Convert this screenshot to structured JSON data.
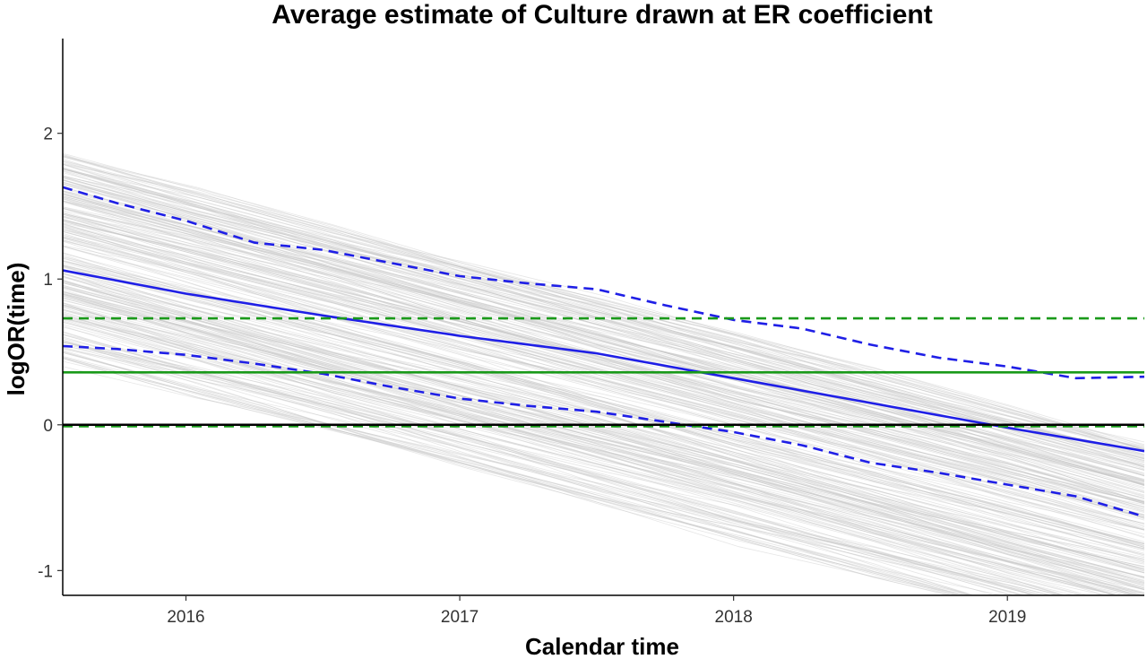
{
  "chart_data": {
    "type": "line",
    "title": "Average estimate of Culture drawn at ER coefficient",
    "xlabel": "Calendar time",
    "ylabel": "logOR(time)",
    "xlim": [
      2015.55,
      2019.5
    ],
    "ylim": [
      -1.17,
      2.65
    ],
    "x_ticks": [
      2016,
      2017,
      2018,
      2019
    ],
    "x_tick_labels": [
      "2016",
      "2017",
      "2018",
      "2019"
    ],
    "y_ticks": [
      -1,
      0,
      1,
      2
    ],
    "y_tick_labels": [
      "-1",
      "0",
      "1",
      "2"
    ],
    "grid": false,
    "legend": "none",
    "series": [
      {
        "role": "mean estimate",
        "color": "#1f1fe6",
        "style": "solid",
        "x": [
          2015.55,
          2016.0,
          2016.5,
          2017.0,
          2017.5,
          2018.0,
          2018.5,
          2019.0,
          2019.5
        ],
        "y": [
          1.06,
          0.9,
          0.75,
          0.61,
          0.49,
          0.32,
          0.15,
          -0.02,
          -0.18
        ]
      },
      {
        "role": "upper band",
        "color": "#1f1fe6",
        "style": "dashed",
        "x": [
          2015.55,
          2015.75,
          2016.0,
          2016.25,
          2016.5,
          2016.75,
          2017.0,
          2017.25,
          2017.5,
          2017.75,
          2018.0,
          2018.25,
          2018.5,
          2018.75,
          2019.0,
          2019.25,
          2019.5
        ],
        "y": [
          1.63,
          1.52,
          1.4,
          1.25,
          1.2,
          1.11,
          1.02,
          0.97,
          0.93,
          0.82,
          0.72,
          0.66,
          0.55,
          0.46,
          0.4,
          0.32,
          0.33
        ]
      },
      {
        "role": "lower band",
        "color": "#1f1fe6",
        "style": "dashed",
        "x": [
          2015.55,
          2015.75,
          2016.0,
          2016.25,
          2016.5,
          2016.75,
          2017.0,
          2017.25,
          2017.5,
          2017.75,
          2018.0,
          2018.25,
          2018.5,
          2018.75,
          2019.0,
          2019.25,
          2019.5
        ],
        "y": [
          0.54,
          0.52,
          0.48,
          0.42,
          0.35,
          0.26,
          0.18,
          0.13,
          0.09,
          0.02,
          -0.05,
          -0.14,
          -0.26,
          -0.33,
          -0.41,
          -0.49,
          -0.63
        ]
      },
      {
        "role": "green reference",
        "color": "#1a9a1a",
        "style": "solid",
        "x": [
          2015.55,
          2019.5
        ],
        "y": [
          0.36,
          0.36
        ]
      },
      {
        "role": "green reference upper",
        "color": "#1a9a1a",
        "style": "dashed",
        "x": [
          2015.55,
          2019.5
        ],
        "y": [
          0.73,
          0.73
        ]
      },
      {
        "role": "green reference lower",
        "color": "#1a9a1a",
        "style": "dashed",
        "x": [
          2015.55,
          2019.5
        ],
        "y": [
          -0.01,
          -0.01
        ]
      },
      {
        "role": "zero line",
        "color": "#000000",
        "style": "solid",
        "x": [
          2015.55,
          2019.5
        ],
        "y": [
          0,
          0
        ]
      }
    ],
    "background_ensemble": {
      "color": "#c8c8c8",
      "count": 260,
      "start_y_range": [
        0.45,
        1.85
      ],
      "slope_per_year_range": [
        -0.5,
        -0.16
      ]
    }
  }
}
